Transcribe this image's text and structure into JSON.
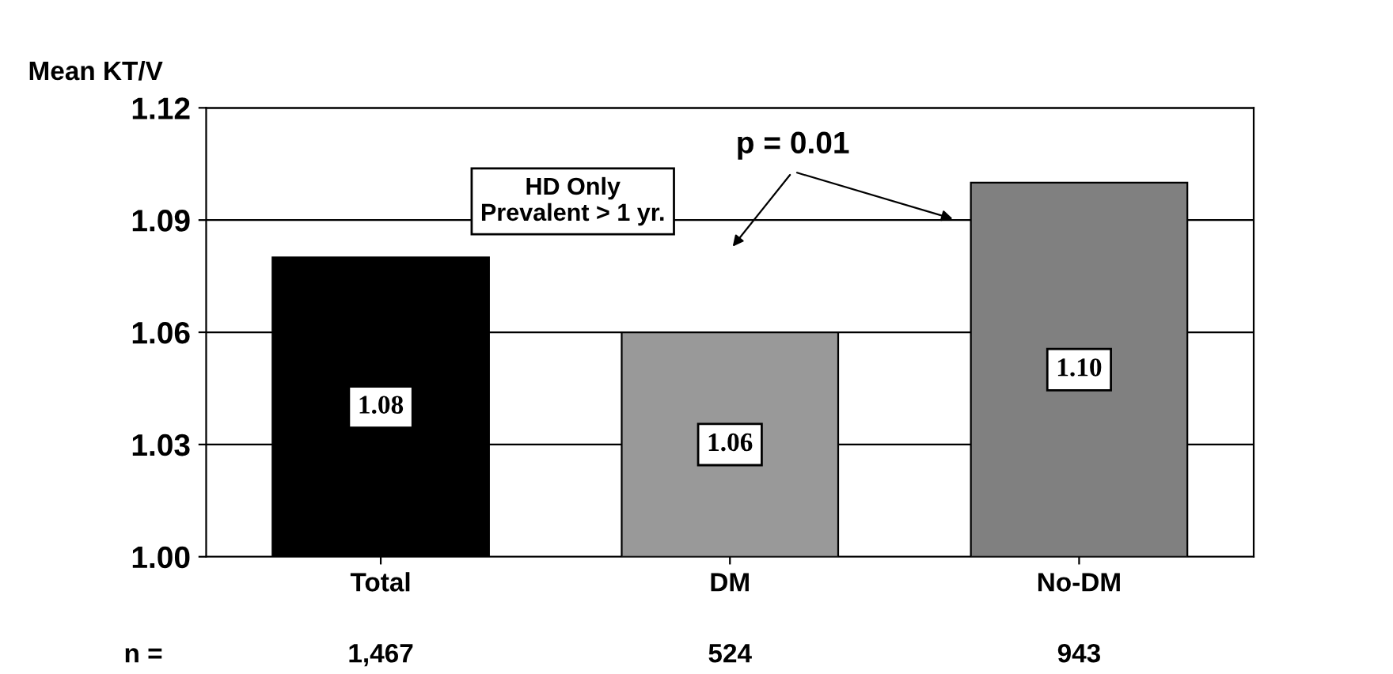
{
  "chart_data": {
    "type": "bar",
    "ylabel": "Mean KT/V",
    "categories": [
      "Total",
      "DM",
      "No-DM"
    ],
    "values": [
      1.08,
      1.06,
      1.1
    ],
    "colors": [
      "#000000",
      "#999999",
      "#808080"
    ],
    "ylim": [
      1.0,
      1.12
    ],
    "yticks": [
      {
        "value": 1.0,
        "label": "1.00"
      },
      {
        "value": 1.03,
        "label": "1.03"
      },
      {
        "value": 1.06,
        "label": "1.06"
      },
      {
        "value": 1.09,
        "label": "1.09"
      },
      {
        "value": 1.12,
        "label": "1.12"
      }
    ],
    "grid": "y",
    "value_labels": [
      "1.08",
      "1.06",
      "1.10"
    ],
    "annotations": [
      "HD Only\nPrevalent > 1 yr.",
      "p = 0.01",
      "n =",
      "1,467",
      "524",
      "943"
    ]
  }
}
